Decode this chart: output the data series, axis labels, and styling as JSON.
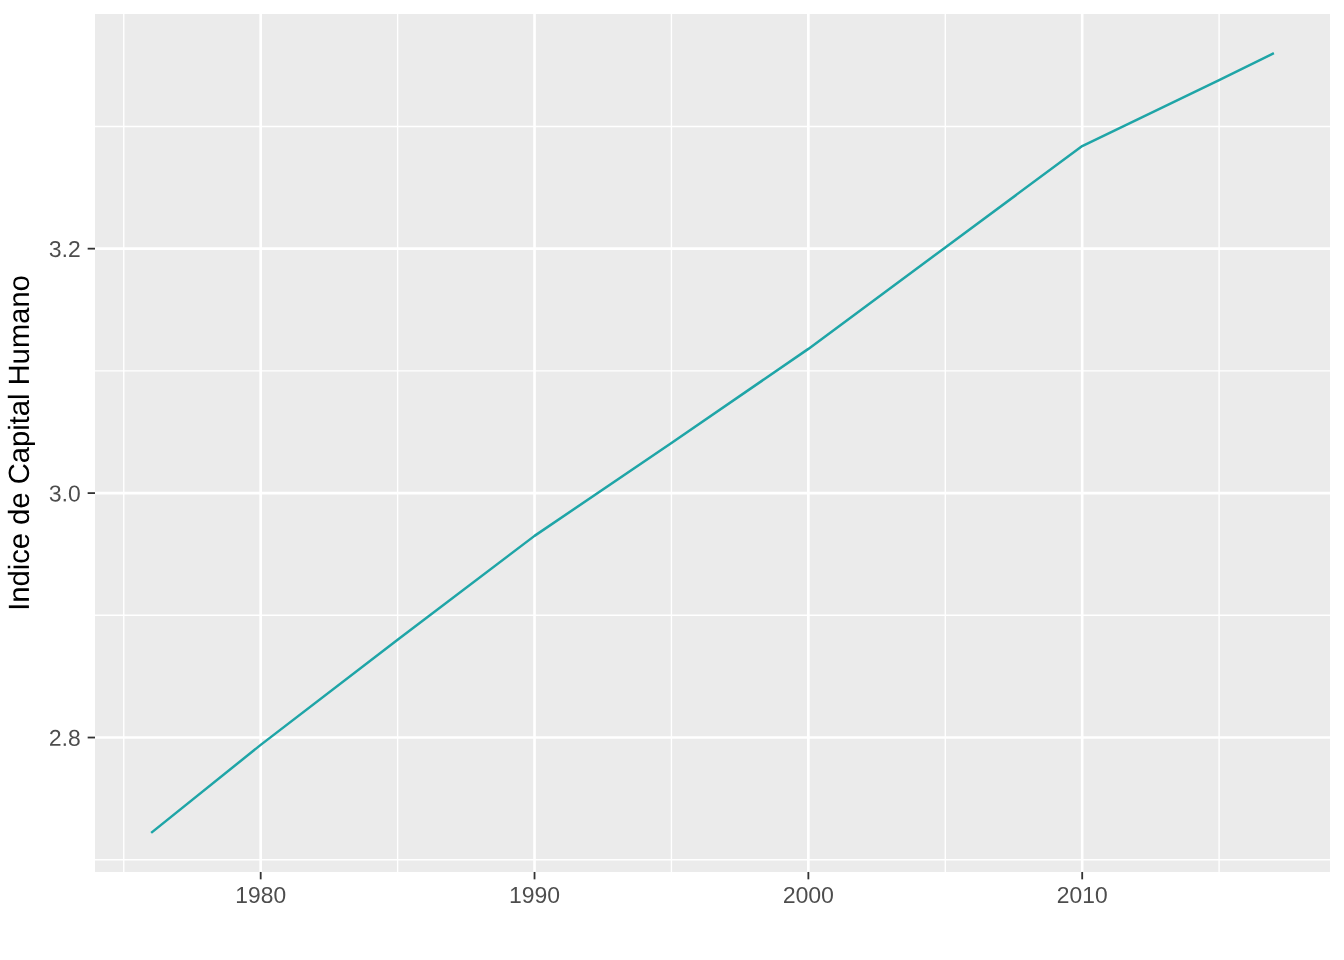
{
  "chart_data": {
    "type": "line",
    "ylabel": "Indice de Capital Humano",
    "x": [
      1976,
      1980,
      1985,
      1990,
      1995,
      2000,
      2005,
      2010,
      2015,
      2017
    ],
    "series": [
      {
        "color": "#1fa5a7",
        "values": [
          2.722,
          2.794,
          2.88,
          2.965,
          3.041,
          3.118,
          3.201,
          3.284,
          3.338,
          3.36
        ]
      }
    ],
    "xlim": [
      1973.95,
      2019.05
    ],
    "ylim": [
      2.69,
      3.392
    ],
    "xticks": [
      1980,
      1990,
      2000,
      2010
    ],
    "yticks": [
      {
        "value": 2.8,
        "label": "2.8"
      },
      {
        "value": 3.0,
        "label": "3.0"
      },
      {
        "value": 3.2,
        "label": "3.2"
      }
    ],
    "grid": true,
    "line_style": "solid"
  }
}
